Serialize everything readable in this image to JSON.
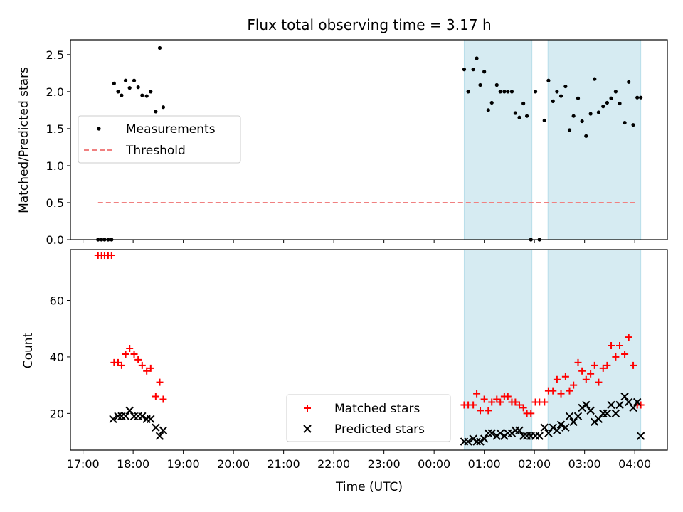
{
  "chart_data": [
    {
      "type": "scatter",
      "title": "Flux total observing time = 3.17 h",
      "xlabel": "",
      "ylabel": "Matched/Predicted stars",
      "xlim": [
        16.75,
        28.65
      ],
      "ylim": [
        0.0,
        2.7
      ],
      "yticks": [
        0.0,
        0.5,
        1.0,
        1.5,
        2.0,
        2.5
      ],
      "ytick_labels": [
        "0.0",
        "0.5",
        "1.0",
        "1.5",
        "2.0",
        "2.5"
      ],
      "shaded_spans": [
        [
          24.6,
          25.95
        ],
        [
          26.27,
          28.12
        ]
      ],
      "legend": {
        "position": "center-left",
        "entries": [
          "Measurements",
          "Threshold"
        ]
      },
      "threshold": {
        "name": "Threshold",
        "value": 0.5,
        "x_range": [
          17.3,
          28.05
        ],
        "color": "#f08080"
      },
      "series": [
        {
          "name": "Measurements",
          "marker": "dot",
          "color": "#000000",
          "x": [
            17.3,
            17.37,
            17.43,
            17.5,
            17.57,
            17.62,
            17.7,
            17.77,
            17.85,
            17.93,
            18.02,
            18.1,
            18.18,
            18.27,
            18.35,
            18.45,
            18.53,
            18.6,
            24.6,
            24.68,
            24.78,
            24.85,
            24.92,
            25.0,
            25.08,
            25.15,
            25.25,
            25.32,
            25.4,
            25.47,
            25.55,
            25.62,
            25.7,
            25.78,
            25.85,
            25.93,
            26.02,
            26.1,
            26.2,
            26.28,
            26.37,
            26.45,
            26.53,
            26.62,
            26.7,
            26.78,
            26.87,
            26.95,
            27.03,
            27.12,
            27.2,
            27.28,
            27.37,
            27.45,
            27.53,
            27.62,
            27.7,
            27.8,
            27.88,
            27.97,
            28.05,
            28.12
          ],
          "y": [
            0.0,
            0.0,
            0.0,
            0.0,
            0.0,
            2.11,
            2.0,
            1.95,
            2.15,
            2.05,
            2.15,
            2.06,
            1.95,
            1.94,
            2.0,
            1.73,
            2.59,
            1.79,
            2.3,
            2.0,
            2.3,
            2.45,
            2.09,
            2.27,
            1.75,
            1.85,
            2.09,
            2.0,
            2.0,
            2.0,
            2.0,
            1.71,
            1.65,
            1.84,
            1.67,
            0.0,
            2.0,
            0.0,
            1.61,
            2.15,
            1.87,
            2.0,
            1.94,
            2.07,
            1.48,
            1.67,
            1.91,
            1.6,
            1.4,
            1.7,
            2.17,
            1.72,
            1.8,
            1.85,
            1.91,
            2.0,
            1.84,
            1.58,
            2.13,
            1.55,
            1.92,
            1.92
          ]
        }
      ]
    },
    {
      "type": "scatter",
      "title": "",
      "xlabel": "Time (UTC)",
      "ylabel": "Count",
      "xlim": [
        16.75,
        28.65
      ],
      "ylim": [
        7,
        78
      ],
      "yticks": [
        20,
        40,
        60
      ],
      "ytick_labels": [
        "20",
        "40",
        "60"
      ],
      "xticks": [
        17,
        18,
        19,
        20,
        21,
        22,
        23,
        24,
        25,
        26,
        27,
        28
      ],
      "xtick_labels": [
        "17:00",
        "18:00",
        "19:00",
        "20:00",
        "21:00",
        "22:00",
        "23:00",
        "00:00",
        "01:00",
        "02:00",
        "03:00",
        "04:00"
      ],
      "shaded_spans": [
        [
          24.6,
          25.95
        ],
        [
          26.27,
          28.12
        ]
      ],
      "legend": {
        "position": "bottom-center-right",
        "entries": [
          "Matched stars",
          "Predicted stars"
        ]
      },
      "series": [
        {
          "name": "Matched stars",
          "marker": "plus",
          "color": "#ff0000",
          "x": [
            17.3,
            17.37,
            17.43,
            17.5,
            17.57,
            17.62,
            17.7,
            17.77,
            17.85,
            17.93,
            18.02,
            18.1,
            18.18,
            18.27,
            18.35,
            18.45,
            18.53,
            18.6,
            24.6,
            24.68,
            24.78,
            24.85,
            24.92,
            25.0,
            25.08,
            25.15,
            25.25,
            25.32,
            25.4,
            25.47,
            25.55,
            25.62,
            25.7,
            25.78,
            25.85,
            25.93,
            26.02,
            26.1,
            26.2,
            26.28,
            26.37,
            26.45,
            26.53,
            26.62,
            26.7,
            26.78,
            26.87,
            26.95,
            27.03,
            27.12,
            27.2,
            27.28,
            27.37,
            27.45,
            27.53,
            27.62,
            27.7,
            27.8,
            27.88,
            27.97,
            28.05,
            28.12
          ],
          "y": [
            76,
            76,
            76,
            76,
            76,
            38,
            38,
            37,
            41,
            43,
            41,
            39,
            37,
            35,
            36,
            26,
            31,
            25,
            23,
            23,
            23,
            27,
            21,
            25,
            21,
            24,
            25,
            24,
            26,
            26,
            24,
            24,
            23,
            22,
            20,
            20,
            24,
            24,
            24,
            28,
            28,
            32,
            27,
            33,
            28,
            30,
            38,
            35,
            32,
            34,
            37,
            31,
            36,
            37,
            44,
            40,
            44,
            41,
            47,
            37,
            23,
            23
          ]
        },
        {
          "name": "Predicted stars",
          "marker": "x",
          "color": "#000000",
          "x": [
            17.6,
            17.7,
            17.77,
            17.85,
            17.93,
            18.02,
            18.1,
            18.18,
            18.27,
            18.35,
            18.45,
            18.53,
            18.6,
            24.6,
            24.68,
            24.78,
            24.85,
            24.92,
            25.0,
            25.08,
            25.15,
            25.25,
            25.32,
            25.4,
            25.47,
            25.55,
            25.62,
            25.7,
            25.78,
            25.85,
            25.93,
            26.02,
            26.1,
            26.2,
            26.28,
            26.37,
            26.45,
            26.53,
            26.62,
            26.7,
            26.78,
            26.87,
            26.95,
            27.03,
            27.12,
            27.2,
            27.28,
            27.37,
            27.45,
            27.53,
            27.62,
            27.7,
            27.8,
            27.88,
            27.97,
            28.05,
            28.12
          ],
          "y": [
            18,
            19,
            19,
            19,
            21,
            19,
            19,
            19,
            18,
            18,
            15,
            12,
            14,
            10,
            10,
            11,
            10,
            10,
            11,
            13,
            13,
            12,
            13,
            12,
            13,
            13,
            14,
            14,
            12,
            12,
            12,
            12,
            12,
            15,
            13,
            15,
            14,
            16,
            15,
            19,
            17,
            19,
            22,
            23,
            21,
            17,
            18,
            20,
            20,
            23,
            20,
            23,
            26,
            24,
            22,
            24,
            12
          ]
        }
      ]
    }
  ]
}
